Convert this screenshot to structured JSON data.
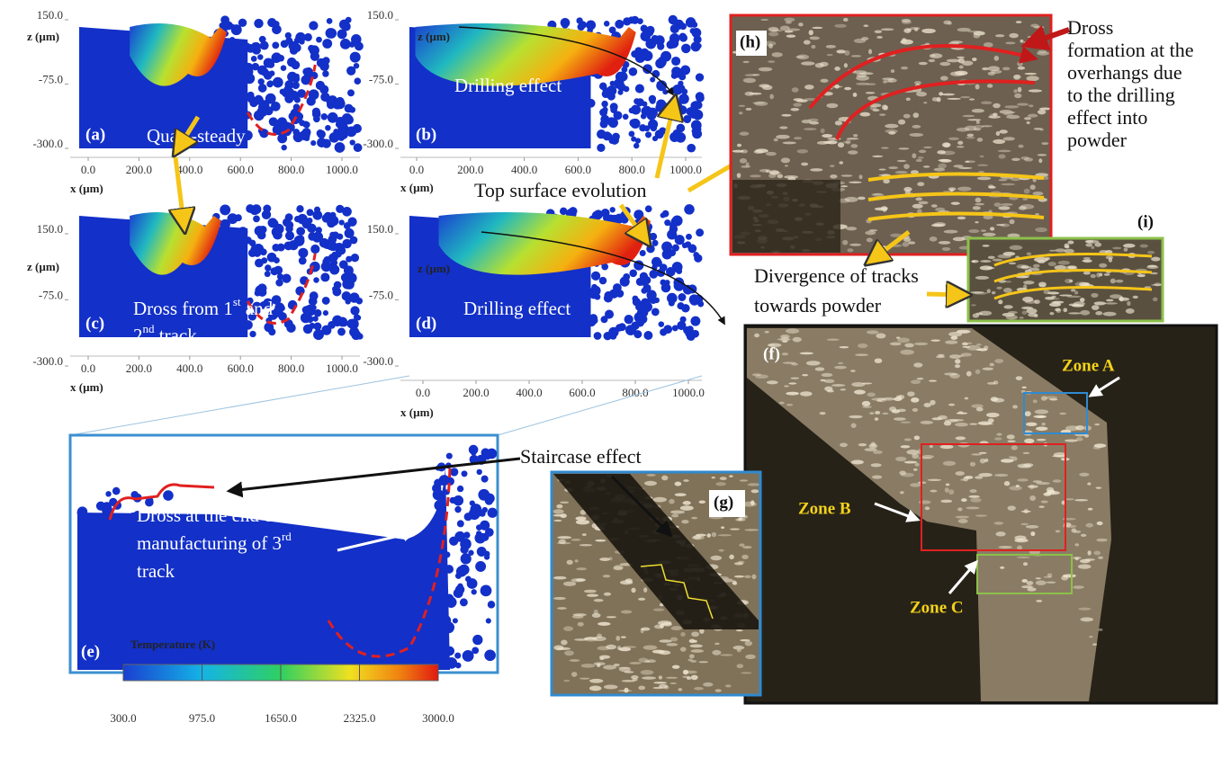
{
  "simulation": {
    "axes": {
      "z_label": "z (µm)",
      "x_label": "x (µm)",
      "z_ticks": [
        {
          "value": 150,
          "label": "150.0"
        },
        {
          "value": -75,
          "label": "-75.0"
        },
        {
          "value": -300,
          "label": "-300.0"
        }
      ],
      "x_ticks": [
        {
          "value": 0,
          "label": "0.0"
        },
        {
          "value": 200,
          "label": "200.0"
        },
        {
          "value": 400,
          "label": "400.0"
        },
        {
          "value": 600,
          "label": "600.0"
        },
        {
          "value": 800,
          "label": "800.0"
        },
        {
          "value": 1000,
          "label": "1000.0"
        }
      ]
    },
    "panels": [
      {
        "label": "(a)",
        "annotation": [
          [
            "Quasi-steady"
          ]
        ]
      },
      {
        "label": "(b)",
        "annotation": [
          [
            "Drilling effect"
          ]
        ]
      },
      {
        "label": "(c)",
        "annotation": [
          [
            "Dross from 1",
            "st",
            " and"
          ],
          [
            "2",
            "nd",
            " track"
          ]
        ]
      },
      {
        "label": "(d)",
        "annotation": [
          [
            "Drilling effect"
          ]
        ]
      }
    ]
  },
  "top_surface_evolution": "Top surface evolution",
  "panel_e": {
    "label": "(e)",
    "annotation": [
      [
        "Dross at the end of"
      ],
      [
        "manufacturing of 3",
        "rd"
      ],
      [
        "track"
      ]
    ]
  },
  "staircase_effect": "Staircase effect",
  "panel_g": {
    "label": "(g)"
  },
  "panel_h": {
    "label": "(h)",
    "annotation": [
      "Dross",
      "formation at the",
      "overhangs due",
      "to the drilling",
      "effect into",
      "powder"
    ]
  },
  "panel_i": {
    "label": "(i)",
    "annotation": [
      "Divergence of tracks",
      "towards powder"
    ]
  },
  "panel_f": {
    "label": "(f)",
    "zones": [
      "Zone A",
      "Zone B",
      "Zone C"
    ]
  },
  "colorbar": {
    "title": "Temperature (K)",
    "range": [
      300,
      3000
    ],
    "ticks": [
      {
        "value": 300,
        "label": "300.0"
      },
      {
        "value": 975,
        "label": "975.0"
      },
      {
        "value": 1650,
        "label": "1650.0"
      },
      {
        "value": 2325,
        "label": "2325.0"
      },
      {
        "value": 3000,
        "label": "3000.0"
      }
    ]
  }
}
